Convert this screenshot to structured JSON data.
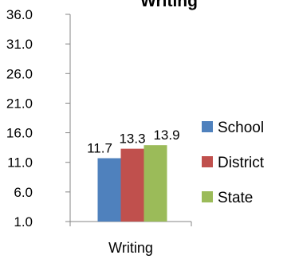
{
  "chart_data": {
    "type": "bar",
    "title": "Writing",
    "categories": [
      "Writing"
    ],
    "series": [
      {
        "name": "School",
        "values": [
          11.7
        ],
        "color": "#4F81BD",
        "label": "11.7"
      },
      {
        "name": "District",
        "values": [
          13.3
        ],
        "color": "#C0504D",
        "label": "13.3"
      },
      {
        "name": "State",
        "values": [
          13.9
        ],
        "color": "#9BBB59",
        "label": "13.9"
      }
    ],
    "y_ticks": [
      "36.0",
      "31.0",
      "26.0",
      "21.0",
      "16.0",
      "11.0",
      "6.0",
      "1.0"
    ],
    "ylim": [
      1,
      36
    ],
    "grid": false,
    "legend_position": "right",
    "xlabel": "",
    "ylabel": ""
  }
}
